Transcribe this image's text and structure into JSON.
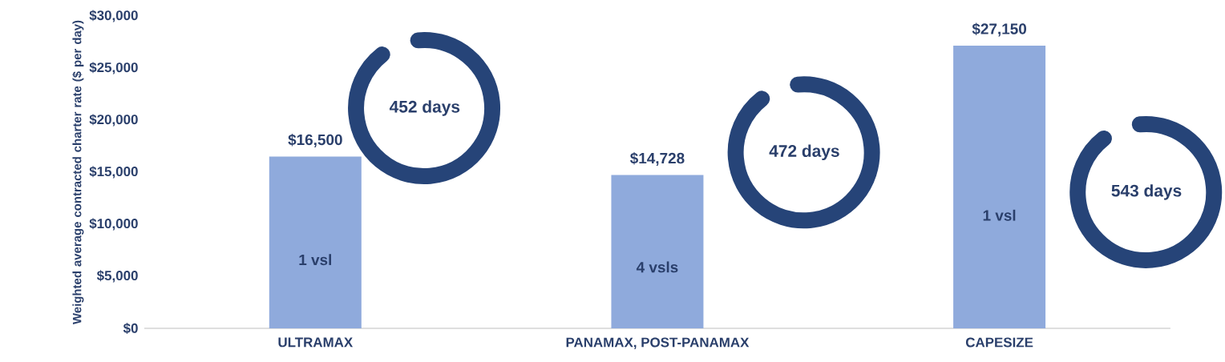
{
  "chart_data": {
    "type": "bar",
    "ylabel": "Weighted average contracted charter rate ($ per day)",
    "categories": [
      "ULTRAMAX",
      "PANAMAX, POST-PANAMAX",
      "CAPESIZE"
    ],
    "values": [
      16500,
      14728,
      27150
    ],
    "value_labels": [
      "$16,500",
      "$14,728",
      "$27,150"
    ],
    "color": "#8faadc",
    "ylim": [
      0,
      30000
    ],
    "yticks": [
      {
        "value": 0,
        "label": "$0"
      },
      {
        "value": 5000,
        "label": "$5,000"
      },
      {
        "value": 10000,
        "label": "$10,000"
      },
      {
        "value": 15000,
        "label": "$15,000"
      },
      {
        "value": 20000,
        "label": "$20,000"
      },
      {
        "value": 25000,
        "label": "$25,000"
      },
      {
        "value": 30000,
        "label": "$30,000"
      }
    ],
    "annotations": [
      "1 vsl",
      "4 vsls",
      "1 vsl",
      "452 days",
      "472 days",
      "543 days"
    ]
  }
}
